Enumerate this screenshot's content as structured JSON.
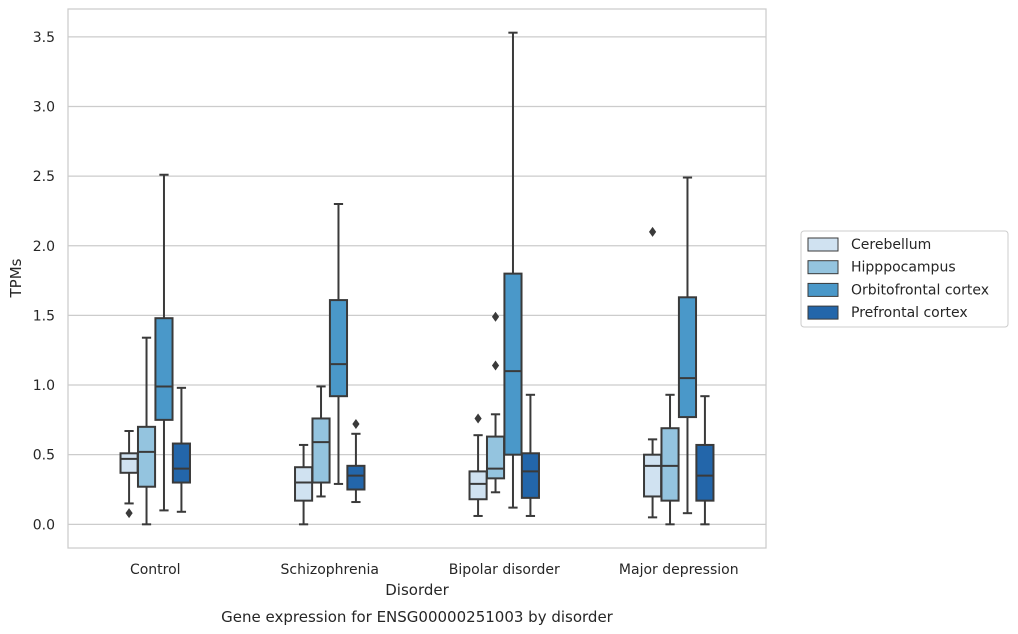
{
  "chart_data": {
    "type": "boxplot",
    "caption": "Gene expression for ENSG00000251003 by disorder",
    "xlabel": "Disorder",
    "ylabel": "TPMs",
    "ylim": [
      -0.17,
      3.7
    ],
    "yticks": [
      0.0,
      0.5,
      1.0,
      1.5,
      2.0,
      2.5,
      3.0,
      3.5
    ],
    "ytick_labels": [
      "0.0",
      "0.5",
      "1.0",
      "1.5",
      "2.0",
      "2.5",
      "3.0",
      "3.5"
    ],
    "grid": "horizontal",
    "legend_position": "right",
    "categories": [
      "Control",
      "Schizophrenia",
      "Bipolar disorder",
      "Major depression"
    ],
    "series": [
      {
        "name": "Cerebellum",
        "color": "#d0e2f1",
        "boxes": [
          {
            "whisker_low": 0.15,
            "q1": 0.37,
            "median": 0.47,
            "q3": 0.51,
            "whisker_high": 0.67,
            "outliers": [
              0.08
            ]
          },
          {
            "whisker_low": 0.0,
            "q1": 0.17,
            "median": 0.3,
            "q3": 0.41,
            "whisker_high": 0.57,
            "outliers": []
          },
          {
            "whisker_low": 0.06,
            "q1": 0.18,
            "median": 0.29,
            "q3": 0.38,
            "whisker_high": 0.64,
            "outliers": [
              0.76
            ]
          },
          {
            "whisker_low": 0.05,
            "q1": 0.2,
            "median": 0.42,
            "q3": 0.5,
            "whisker_high": 0.61,
            "outliers": [
              2.1
            ]
          }
        ]
      },
      {
        "name": "Hipppocampus",
        "color": "#94c4df",
        "boxes": [
          {
            "whisker_low": 0.0,
            "q1": 0.27,
            "median": 0.52,
            "q3": 0.7,
            "whisker_high": 1.34,
            "outliers": []
          },
          {
            "whisker_low": 0.2,
            "q1": 0.3,
            "median": 0.59,
            "q3": 0.76,
            "whisker_high": 0.99,
            "outliers": []
          },
          {
            "whisker_low": 0.23,
            "q1": 0.33,
            "median": 0.4,
            "q3": 0.63,
            "whisker_high": 0.79,
            "outliers": [
              1.14,
              1.49
            ]
          },
          {
            "whisker_low": 0.0,
            "q1": 0.17,
            "median": 0.42,
            "q3": 0.69,
            "whisker_high": 0.93,
            "outliers": []
          }
        ]
      },
      {
        "name": "Orbitofrontal cortex",
        "color": "#4a98c9",
        "boxes": [
          {
            "whisker_low": 0.1,
            "q1": 0.75,
            "median": 0.99,
            "q3": 1.48,
            "whisker_high": 2.51,
            "outliers": []
          },
          {
            "whisker_low": 0.29,
            "q1": 0.92,
            "median": 1.15,
            "q3": 1.61,
            "whisker_high": 2.3,
            "outliers": []
          },
          {
            "whisker_low": 0.12,
            "q1": 0.5,
            "median": 1.1,
            "q3": 1.8,
            "whisker_high": 3.53,
            "outliers": []
          },
          {
            "whisker_low": 0.08,
            "q1": 0.77,
            "median": 1.05,
            "q3": 1.63,
            "whisker_high": 2.49,
            "outliers": []
          }
        ]
      },
      {
        "name": "Prefrontal cortex",
        "color": "#2366aa",
        "boxes": [
          {
            "whisker_low": 0.09,
            "q1": 0.3,
            "median": 0.4,
            "q3": 0.58,
            "whisker_high": 0.98,
            "outliers": []
          },
          {
            "whisker_low": 0.16,
            "q1": 0.25,
            "median": 0.35,
            "q3": 0.42,
            "whisker_high": 0.65,
            "outliers": [
              0.72
            ]
          },
          {
            "whisker_low": 0.06,
            "q1": 0.19,
            "median": 0.38,
            "q3": 0.51,
            "whisker_high": 0.93,
            "outliers": []
          },
          {
            "whisker_low": 0.0,
            "q1": 0.17,
            "median": 0.35,
            "q3": 0.57,
            "whisker_high": 0.92,
            "outliers": []
          }
        ]
      }
    ]
  }
}
